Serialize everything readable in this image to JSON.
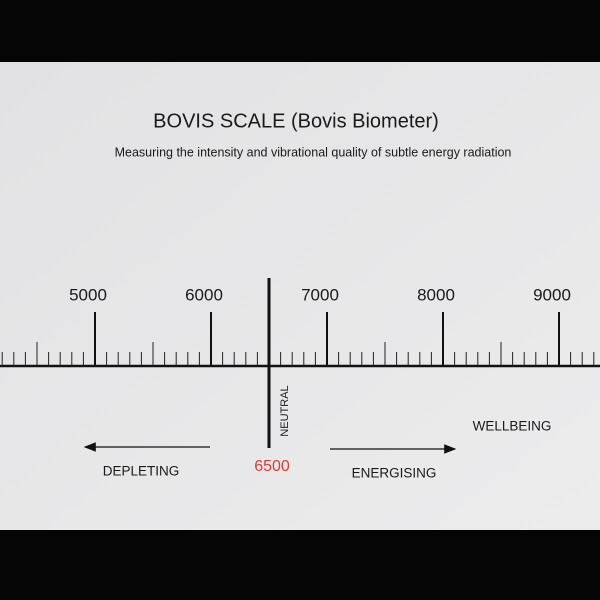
{
  "title": "BOVIS SCALE (Bovis Biometer)",
  "subtitle": "Measuring the intensity and vibrational quality of subtle energy radiation",
  "scale": {
    "ticks": [
      5000,
      6000,
      7000,
      8000,
      9000
    ],
    "neutral": 6500,
    "neutral_label": "6500"
  },
  "labels": {
    "neutral": "NEUTRAL",
    "wellbeing": "WELLBEING",
    "depleting": "DEPLETING",
    "energising": "ENERGISING"
  }
}
